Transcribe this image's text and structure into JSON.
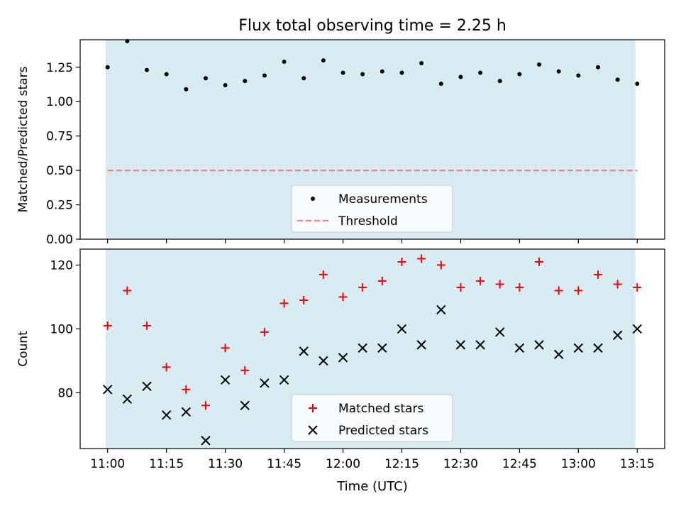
{
  "figure": {
    "title": "Flux total observing time = 2.25 h",
    "xlabel": "Time (UTC)",
    "x_ticks": [
      "11:00",
      "11:15",
      "11:30",
      "11:45",
      "12:00",
      "12:15",
      "12:30",
      "12:45",
      "13:00",
      "13:15"
    ],
    "x_range": [
      "10:53",
      "13:22"
    ],
    "shaded_interval": [
      "10:59.5",
      "13:14.5"
    ],
    "shade_color": "#add8e6"
  },
  "chart_data": [
    {
      "type": "scatter",
      "ylabel": "Matched/Predicted stars",
      "ylim": [
        0,
        1.45
      ],
      "y_ticks": [
        "0.00",
        "0.25",
        "0.50",
        "0.75",
        "1.00",
        "1.25"
      ],
      "legend_position": "bottom-center",
      "series": [
        {
          "name": "Measurements",
          "color": "#000000",
          "marker": "dot",
          "x": [
            "11:00",
            "11:05",
            "11:10",
            "11:15",
            "11:20",
            "11:25",
            "11:30",
            "11:35",
            "11:40",
            "11:45",
            "11:50",
            "11:55",
            "12:00",
            "12:05",
            "12:10",
            "12:15",
            "12:20",
            "12:25",
            "12:30",
            "12:35",
            "12:40",
            "12:45",
            "12:50",
            "12:55",
            "13:00",
            "13:05",
            "13:10",
            "13:15"
          ],
          "y": [
            1.25,
            1.44,
            1.23,
            1.2,
            1.09,
            1.17,
            1.12,
            1.15,
            1.19,
            1.29,
            1.17,
            1.3,
            1.21,
            1.2,
            1.22,
            1.21,
            1.28,
            1.13,
            1.18,
            1.21,
            1.15,
            1.2,
            1.27,
            1.22,
            1.19,
            1.25,
            1.16,
            1.13
          ]
        },
        {
          "name": "Threshold",
          "color": "#f08080",
          "style": "dashed-line",
          "x": [
            "11:00",
            "13:15"
          ],
          "y": [
            0.5,
            0.5
          ]
        }
      ]
    },
    {
      "type": "scatter",
      "ylabel": "Count",
      "ylim": [
        62.5,
        125
      ],
      "y_ticks": [
        "80",
        "100",
        "120"
      ],
      "legend_position": "bottom-center",
      "series": [
        {
          "name": "Matched stars",
          "color": "#ff0000",
          "marker": "plus",
          "x": [
            "11:00",
            "11:05",
            "11:10",
            "11:15",
            "11:20",
            "11:25",
            "11:30",
            "11:35",
            "11:40",
            "11:45",
            "11:50",
            "11:55",
            "12:00",
            "12:05",
            "12:10",
            "12:15",
            "12:20",
            "12:25",
            "12:30",
            "12:35",
            "12:40",
            "12:45",
            "12:50",
            "12:55",
            "13:00",
            "13:05",
            "13:10",
            "13:15"
          ],
          "y": [
            101,
            112,
            101,
            88,
            81,
            76,
            94,
            87,
            99,
            108,
            109,
            117,
            110,
            113,
            115,
            121,
            122,
            120,
            113,
            115,
            114,
            113,
            121,
            112,
            112,
            117,
            114,
            113
          ]
        },
        {
          "name": "Predicted stars",
          "color": "#000000",
          "marker": "x",
          "x": [
            "11:00",
            "11:05",
            "11:10",
            "11:15",
            "11:20",
            "11:25",
            "11:30",
            "11:35",
            "11:40",
            "11:45",
            "11:50",
            "11:55",
            "12:00",
            "12:05",
            "12:10",
            "12:15",
            "12:20",
            "12:25",
            "12:30",
            "12:35",
            "12:40",
            "12:45",
            "12:50",
            "12:55",
            "13:00",
            "13:05",
            "13:10",
            "13:15"
          ],
          "y": [
            81,
            78,
            82,
            73,
            74,
            65,
            84,
            76,
            83,
            84,
            93,
            90,
            91,
            94,
            94,
            100,
            95,
            106,
            95,
            95,
            99,
            94,
            95,
            92,
            94,
            94,
            98,
            100
          ]
        }
      ]
    }
  ]
}
